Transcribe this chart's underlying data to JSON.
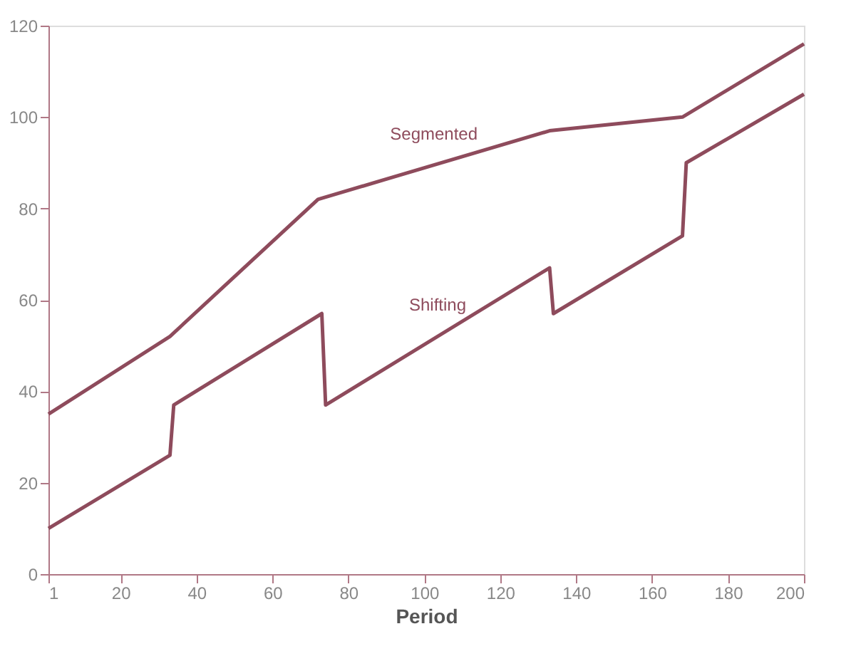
{
  "chart_data": {
    "type": "line",
    "xlabel": "Period",
    "xlim": [
      1,
      200
    ],
    "xticks": [
      1,
      20,
      40,
      60,
      80,
      100,
      120,
      140,
      160,
      180,
      200
    ],
    "ylim": [
      0,
      120
    ],
    "yticks": [
      0,
      20,
      40,
      60,
      80,
      100,
      120
    ],
    "grid": false,
    "legend": false,
    "marker": "none",
    "line_style": "solid",
    "series": [
      {
        "name": "Segmented",
        "color": "#8e4b5c",
        "x": [
          1,
          33,
          72,
          133,
          168,
          200
        ],
        "values": [
          35,
          52,
          82,
          97,
          100,
          116
        ]
      },
      {
        "name": "Shifting",
        "color": "#8e4b5c",
        "x": [
          1,
          33,
          34,
          73,
          74,
          133,
          134,
          168,
          169,
          200
        ],
        "values": [
          10,
          26,
          37,
          57,
          37,
          67,
          57,
          74,
          90,
          105
        ]
      }
    ]
  }
}
